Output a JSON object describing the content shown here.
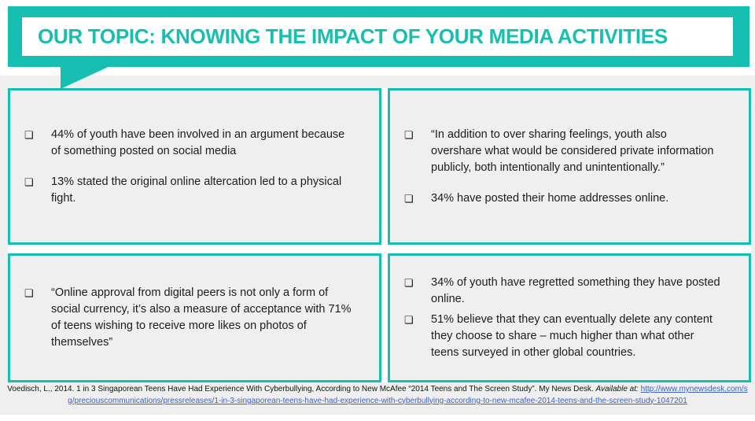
{
  "header": {
    "title": "OUR TOPIC: KNOWING THE IMPACT OF YOUR MEDIA ACTIVITIES"
  },
  "bullet_glyph": "❏",
  "colors": {
    "teal": "#17beb2",
    "box_fill": "#efefef",
    "background_gray": "#efefef",
    "title_text": "#17beb2",
    "body_text": "#1c1c1c",
    "link_blue": "#3a5fc8"
  },
  "boxes": {
    "top_left": {
      "items": [
        "44% of youth have been involved in an argument because\nof something posted on social media",
        "13% stated the original online altercation led to a physical\nfight."
      ]
    },
    "top_right": {
      "items": [
        "“In addition to over sharing feelings, youth also\novershare what would be considered private information\npublicly, both intentionally and unintentionally.”",
        "34% have posted their home addresses online."
      ]
    },
    "bottom_left": {
      "items": [
        "“Online approval from digital peers is not only a form of\nsocial currency, it’s also a measure of acceptance with 71%\nof teens wishing to receive more likes on photos of\nthemselves”"
      ]
    },
    "bottom_right": {
      "items": [
        "34% of youth have regretted something they have posted\nonline.",
        "51% believe that they can eventually delete any content\nthey choose to share – much higher than what other\nteens surveyed in other global countries."
      ]
    }
  },
  "citation": {
    "text": "Voedisch, L., 2014. 1 in 3 Singaporean Teens Have Had Experience With Cyberbullying, According to New McAfee “2014 Teens and The Screen Study”. My News Desk.",
    "available_label": "Available at:",
    "link_text": "http://www.mynewsdesk.com/sg/preciouscommunications/pressreleases/1-in-3-singaporean-teens-have-had-experience-with-cyberbullying-according-to-new-mcafee-2014-teens-and-the-screen-study-1047201"
  }
}
